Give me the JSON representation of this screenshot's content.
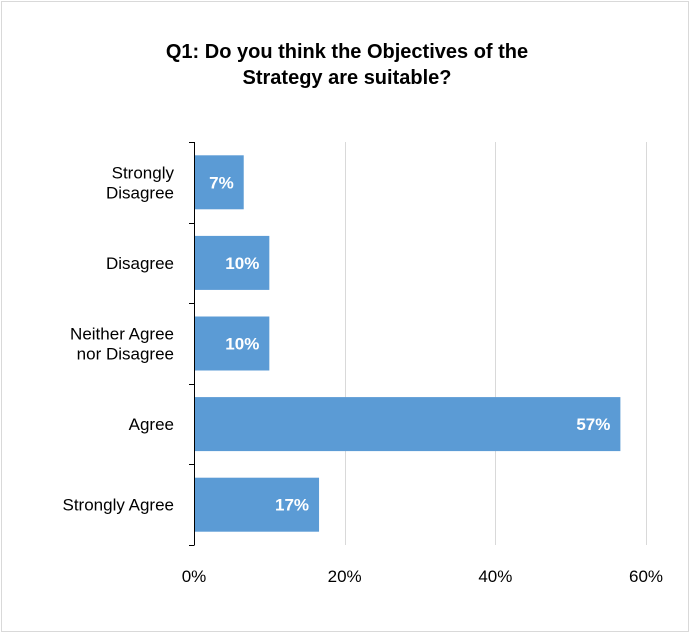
{
  "chart_data": {
    "type": "bar",
    "orientation": "horizontal",
    "title": "Q1: Do you think the Objectives of the Strategy are suitable?",
    "title_lines": [
      "Q1: Do you think the Objectives of the",
      "Strategy are suitable?"
    ],
    "categories": [
      [
        "Strongly",
        "Disagree"
      ],
      [
        "Disagree"
      ],
      [
        "Neither Agree",
        "nor Disagree"
      ],
      [
        "Agree"
      ],
      [
        "Strongly Agree"
      ]
    ],
    "values": [
      0.066,
      0.1,
      0.1,
      0.566,
      0.166
    ],
    "data_labels": [
      "7%",
      "10%",
      "10%",
      "57%",
      "17%"
    ],
    "xlim": [
      0,
      0.6
    ],
    "x_ticks": [
      0,
      0.2,
      0.4,
      0.6
    ],
    "x_tick_labels": [
      "0%",
      "20%",
      "40%",
      "60%"
    ],
    "grid": true,
    "legend": "none",
    "bar_color": "#5b9bd5",
    "label_color": "#ffffff"
  }
}
